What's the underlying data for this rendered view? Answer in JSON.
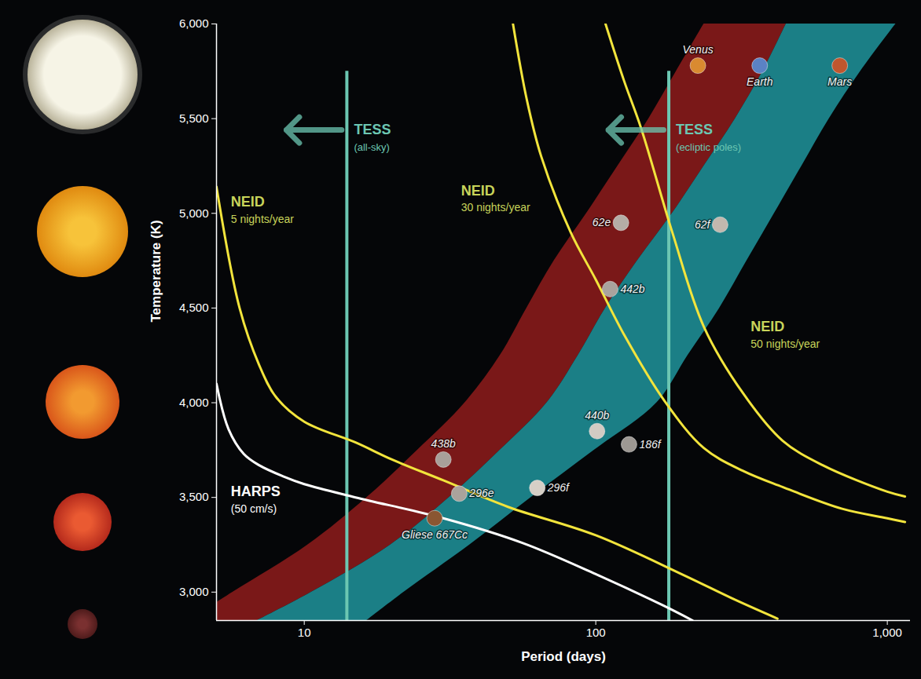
{
  "chart_data": {
    "type": "scatter",
    "x_label": "Period (days)",
    "y_label": "Temperature (K)",
    "log": "x",
    "grid": false,
    "xlim": [
      5,
      1200
    ],
    "ylim": [
      2850,
      6000
    ],
    "xticks": [
      10,
      100,
      {
        "value": 1000,
        "label": "1,000"
      }
    ],
    "yticks": [
      {
        "value": 3000,
        "label": "3,000"
      },
      {
        "value": 3500,
        "label": "3,500"
      },
      {
        "value": 4000,
        "label": "4,000"
      },
      {
        "value": 4500,
        "label": "4,500"
      },
      {
        "value": 5000,
        "label": "5,000"
      },
      {
        "value": 5500,
        "label": "5,500"
      },
      {
        "value": 6000,
        "label": "6,000"
      }
    ],
    "bands": [
      {
        "type": "area",
        "color": "#7a1818",
        "y": [
          2850,
          3000,
          3250,
          3500,
          3750,
          4000,
          4250,
          4500,
          4750,
          5000,
          5250,
          5500,
          5750,
          6000
        ],
        "x1": [
          4,
          5.7,
          10.3,
          16.4,
          24.5,
          35.6,
          47,
          58,
          72,
          93,
          119,
          152,
          189,
          235
        ],
        "x2": [
          6.9,
          10.6,
          19.8,
          31.4,
          47,
          68,
          87,
          108,
          139,
          183,
          235,
          301,
          374,
          450
        ]
      },
      {
        "type": "area",
        "color": "#1b7f86",
        "y": [
          2850,
          3000,
          3250,
          3500,
          3750,
          4000,
          4250,
          4500,
          4750,
          5000,
          5250,
          5500,
          5750,
          6000
        ],
        "x1": [
          6.9,
          10.6,
          19.8,
          31.4,
          47,
          68,
          87,
          108,
          139,
          183,
          235,
          301,
          374,
          450
        ],
        "x2": [
          16.4,
          22,
          37,
          60,
          99,
          162,
          207,
          266,
          330,
          410,
          509,
          632,
          810,
          1070
        ]
      }
    ],
    "series": [
      {
        "type": "line",
        "color": "#f2e43c",
        "x": [
          5,
          6,
          7,
          8,
          10,
          15,
          20,
          30,
          50,
          100,
          200,
          300,
          420
        ],
        "y": [
          5140,
          4500,
          4200,
          4030,
          3900,
          3790,
          3700,
          3590,
          3450,
          3300,
          3090,
          2960,
          2860
        ]
      },
      {
        "type": "line",
        "color": "#f2e43c",
        "x": [
          52,
          58,
          65,
          82,
          100,
          126,
          172,
          235,
          320,
          437,
          700,
          1000,
          1150
        ],
        "y": [
          6000,
          5600,
          5300,
          4900,
          4650,
          4350,
          4010,
          3760,
          3640,
          3555,
          3440,
          3390,
          3370
        ]
      },
      {
        "type": "line",
        "color": "#f2e43c",
        "x": [
          108,
          125,
          143,
          183,
          235,
          320,
          437,
          600,
          1000,
          1150
        ],
        "y": [
          6000,
          5700,
          5450,
          4900,
          4400,
          4050,
          3800,
          3670,
          3530,
          3505
        ]
      },
      {
        "type": "line",
        "color": "#ffffff",
        "x": [
          5,
          5.5,
          6.2,
          7,
          8.5,
          10,
          15,
          30,
          56,
          100,
          170,
          215
        ],
        "y": [
          4100,
          3860,
          3730,
          3670,
          3610,
          3570,
          3500,
          3390,
          3260,
          3095,
          2930,
          2850
        ]
      }
    ],
    "vlines": [
      {
        "text": "TESS",
        "subtext": "(all-sky)",
        "x": 14,
        "y_top": 5750,
        "text_y": 5440,
        "color": "#6cc7b2",
        "line_style": "dashed"
      },
      {
        "text": "TESS",
        "subtext": "(ecliptic poles)",
        "x": 178,
        "y_top": 5750,
        "text_y": 5440,
        "color": "#6cc7b2",
        "line_style": "dashed"
      }
    ],
    "annotations": [
      {
        "text": "NEID",
        "subtext": "5 nights/year",
        "x": 5.6,
        "y": 5060,
        "color": "#c8d45a"
      },
      {
        "text": "NEID",
        "subtext": "30 nights/year",
        "x": 34.5,
        "y": 5120,
        "color": "#c8d45a"
      },
      {
        "text": "NEID",
        "subtext": "50 nights/year",
        "x": 340,
        "y": 4400,
        "color": "#c8d45a"
      },
      {
        "text": "HARPS",
        "subtext": "(50 cm/s)",
        "x": 5.6,
        "y": 3530,
        "color": "#ffffff"
      }
    ],
    "points": [
      {
        "label": "Venus",
        "x": 224,
        "y": 5780,
        "color": "#d98a30"
      },
      {
        "label": "Earth",
        "x": 365,
        "y": 5780,
        "color": "#5b82c4"
      },
      {
        "label": "Mars",
        "x": 687,
        "y": 5780,
        "color": "#c0562e"
      },
      {
        "label": "62e",
        "x": 122,
        "y": 4950,
        "color": "#b5ada6"
      },
      {
        "label": "62f",
        "x": 267,
        "y": 4940,
        "color": "#c2b8ae"
      },
      {
        "label": "442b",
        "x": 112,
        "y": 4600,
        "color": "#a9a39d"
      },
      {
        "label": "440b",
        "x": 101,
        "y": 3850,
        "color": "#d2cbc3"
      },
      {
        "label": "186f",
        "x": 130,
        "y": 3780,
        "color": "#9d9893"
      },
      {
        "label": "438b",
        "x": 30,
        "y": 3700,
        "color": "#a8a09a"
      },
      {
        "label": "296e",
        "x": 34,
        "y": 3520,
        "color": "#aaa39c"
      },
      {
        "label": "296f",
        "x": 63,
        "y": 3550,
        "color": "#d6cfc6"
      },
      {
        "label": "Gliese 667Cc",
        "x": 28,
        "y": 3390,
        "color": "#8a5632"
      }
    ]
  }
}
